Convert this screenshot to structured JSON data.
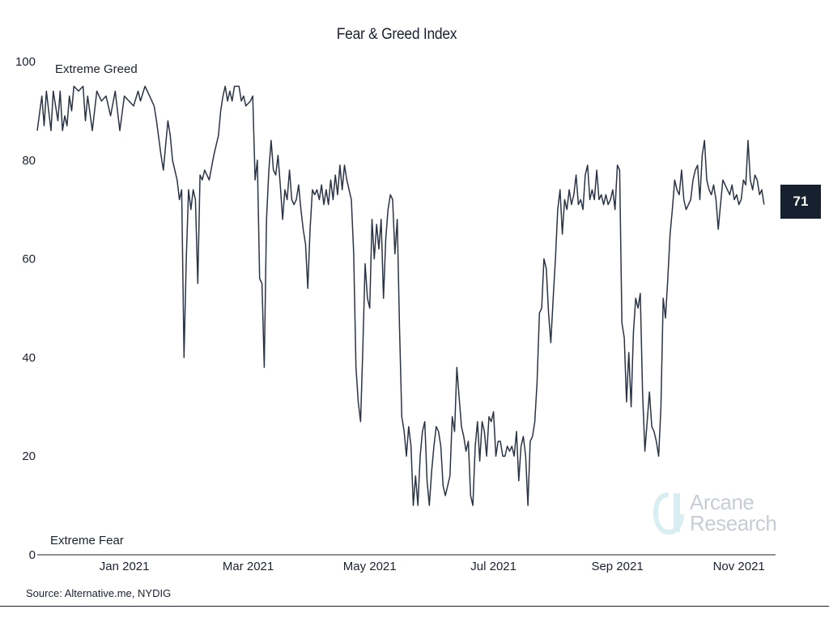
{
  "watermark": {
    "line1": "Arcane",
    "line2": "Research",
    "colors": {
      "text": "#c7cdd4",
      "accent": "#d9eef2"
    }
  },
  "footer": {
    "source": "Source: Alternative.me, NYDIG"
  },
  "badge": {
    "value": "71"
  },
  "colors": {
    "line": "#2b3445",
    "badge_bg": "#17202e",
    "text": "#1a2230"
  },
  "chart_data": {
    "type": "line",
    "title": "Fear & Greed Index",
    "xlabel": "",
    "ylabel": "",
    "ylim": [
      0,
      100
    ],
    "xlim": [
      0,
      322
    ],
    "y_ticks": [
      0,
      20,
      40,
      60,
      80,
      100
    ],
    "x_ticks": [
      {
        "label": "Jan 2021",
        "index": 38
      },
      {
        "label": "Mar 2021",
        "index": 92
      },
      {
        "label": "May 2021",
        "index": 145
      },
      {
        "label": "Jul 2021",
        "index": 199
      },
      {
        "label": "Sep 2021",
        "index": 253
      },
      {
        "label": "Nov 2021",
        "index": 306
      }
    ],
    "annotations": [
      {
        "text": "Extreme Greed",
        "anchor": "top-left"
      },
      {
        "text": "Extreme Fear",
        "anchor": "bottom-left"
      }
    ],
    "series": [
      {
        "name": "Fear & Greed Index",
        "points": [
          [
            0,
            86
          ],
          [
            2,
            93
          ],
          [
            3,
            87
          ],
          [
            4,
            94
          ],
          [
            6,
            86
          ],
          [
            7,
            94
          ],
          [
            9,
            88
          ],
          [
            10,
            94
          ],
          [
            11,
            86
          ],
          [
            12,
            89
          ],
          [
            13,
            87
          ],
          [
            14,
            93
          ],
          [
            15,
            90
          ],
          [
            16,
            95
          ],
          [
            18,
            94
          ],
          [
            20,
            95
          ],
          [
            21,
            88
          ],
          [
            22,
            93
          ],
          [
            24,
            86
          ],
          [
            26,
            94
          ],
          [
            28,
            92
          ],
          [
            30,
            93
          ],
          [
            32,
            89
          ],
          [
            34,
            94
          ],
          [
            36,
            86
          ],
          [
            38,
            93
          ],
          [
            40,
            92
          ],
          [
            42,
            91
          ],
          [
            44,
            94
          ],
          [
            45,
            92
          ],
          [
            47,
            95
          ],
          [
            49,
            93
          ],
          [
            51,
            91
          ],
          [
            52,
            88
          ],
          [
            54,
            81
          ],
          [
            55,
            78
          ],
          [
            57,
            88
          ],
          [
            58,
            85
          ],
          [
            59,
            80
          ],
          [
            61,
            76
          ],
          [
            62,
            72
          ],
          [
            63,
            74
          ],
          [
            64,
            40
          ],
          [
            65,
            60
          ],
          [
            66,
            74
          ],
          [
            67,
            70
          ],
          [
            68,
            74
          ],
          [
            69,
            72
          ],
          [
            70,
            55
          ],
          [
            71,
            77
          ],
          [
            72,
            76
          ],
          [
            73,
            78
          ],
          [
            75,
            76
          ],
          [
            77,
            81
          ],
          [
            79,
            85
          ],
          [
            80,
            90
          ],
          [
            81,
            93
          ],
          [
            82,
            95
          ],
          [
            83,
            92
          ],
          [
            84,
            94
          ],
          [
            85,
            92
          ],
          [
            86,
            95
          ],
          [
            88,
            95
          ],
          [
            89,
            92
          ],
          [
            90,
            93
          ],
          [
            91,
            91
          ],
          [
            93,
            92
          ],
          [
            94,
            93
          ],
          [
            95,
            76
          ],
          [
            96,
            80
          ],
          [
            97,
            56
          ],
          [
            98,
            55
          ],
          [
            99,
            38
          ],
          [
            100,
            68
          ],
          [
            101,
            78
          ],
          [
            102,
            84
          ],
          [
            103,
            78
          ],
          [
            104,
            77
          ],
          [
            105,
            81
          ],
          [
            106,
            75
          ],
          [
            107,
            68
          ],
          [
            108,
            74
          ],
          [
            109,
            72
          ],
          [
            110,
            78
          ],
          [
            111,
            72
          ],
          [
            112,
            71
          ],
          [
            113,
            72
          ],
          [
            114,
            75
          ],
          [
            115,
            70
          ],
          [
            116,
            66
          ],
          [
            117,
            63
          ],
          [
            118,
            54
          ],
          [
            119,
            66
          ],
          [
            120,
            74
          ],
          [
            121,
            73
          ],
          [
            122,
            74
          ],
          [
            123,
            72
          ],
          [
            124,
            75
          ],
          [
            125,
            71
          ],
          [
            126,
            74
          ],
          [
            127,
            71
          ],
          [
            128,
            76
          ],
          [
            129,
            72
          ],
          [
            130,
            77
          ],
          [
            131,
            73
          ],
          [
            132,
            79
          ],
          [
            133,
            74
          ],
          [
            134,
            79
          ],
          [
            135,
            76
          ],
          [
            136,
            74
          ],
          [
            137,
            72
          ],
          [
            138,
            61
          ],
          [
            139,
            38
          ],
          [
            140,
            31
          ],
          [
            141,
            27
          ],
          [
            142,
            42
          ],
          [
            143,
            59
          ],
          [
            144,
            52
          ],
          [
            145,
            50
          ],
          [
            146,
            68
          ],
          [
            147,
            60
          ],
          [
            148,
            67
          ],
          [
            149,
            62
          ],
          [
            150,
            68
          ],
          [
            151,
            52
          ],
          [
            152,
            64
          ],
          [
            153,
            70
          ],
          [
            154,
            73
          ],
          [
            155,
            72
          ],
          [
            156,
            61
          ],
          [
            157,
            68
          ],
          [
            158,
            46
          ],
          [
            159,
            28
          ],
          [
            160,
            25
          ],
          [
            161,
            20
          ],
          [
            162,
            26
          ],
          [
            163,
            22
          ],
          [
            164,
            10
          ],
          [
            165,
            16
          ],
          [
            166,
            10
          ],
          [
            167,
            20
          ],
          [
            168,
            25
          ],
          [
            169,
            27
          ],
          [
            170,
            15
          ],
          [
            171,
            10
          ],
          [
            172,
            17
          ],
          [
            173,
            22
          ],
          [
            174,
            26
          ],
          [
            175,
            25
          ],
          [
            176,
            22
          ],
          [
            177,
            14
          ],
          [
            178,
            12
          ],
          [
            179,
            14
          ],
          [
            180,
            16
          ],
          [
            181,
            28
          ],
          [
            182,
            25
          ],
          [
            183,
            38
          ],
          [
            184,
            32
          ],
          [
            185,
            26
          ],
          [
            186,
            24
          ],
          [
            187,
            21
          ],
          [
            188,
            23
          ],
          [
            189,
            12
          ],
          [
            190,
            10
          ],
          [
            191,
            22
          ],
          [
            192,
            27
          ],
          [
            193,
            19
          ],
          [
            194,
            27
          ],
          [
            195,
            25
          ],
          [
            196,
            20
          ],
          [
            197,
            28
          ],
          [
            198,
            27
          ],
          [
            199,
            29
          ],
          [
            200,
            20
          ],
          [
            201,
            23
          ],
          [
            202,
            23
          ],
          [
            203,
            20
          ],
          [
            204,
            20
          ],
          [
            205,
            22
          ],
          [
            206,
            21
          ],
          [
            207,
            22
          ],
          [
            208,
            20
          ],
          [
            209,
            25
          ],
          [
            210,
            15
          ],
          [
            211,
            22
          ],
          [
            212,
            24
          ],
          [
            213,
            20
          ],
          [
            214,
            10
          ],
          [
            215,
            23
          ],
          [
            216,
            24
          ],
          [
            217,
            27
          ],
          [
            218,
            35
          ],
          [
            219,
            49
          ],
          [
            220,
            50
          ],
          [
            221,
            60
          ],
          [
            222,
            58
          ],
          [
            223,
            49
          ],
          [
            224,
            43
          ],
          [
            225,
            52
          ],
          [
            226,
            60
          ],
          [
            227,
            70
          ],
          [
            228,
            74
          ],
          [
            229,
            65
          ],
          [
            230,
            72
          ],
          [
            231,
            70
          ],
          [
            232,
            74
          ],
          [
            233,
            71
          ],
          [
            234,
            73
          ],
          [
            235,
            77
          ],
          [
            236,
            71
          ],
          [
            237,
            72
          ],
          [
            238,
            70
          ],
          [
            239,
            77
          ],
          [
            240,
            79
          ],
          [
            241,
            72
          ],
          [
            242,
            74
          ],
          [
            243,
            72
          ],
          [
            244,
            78
          ],
          [
            245,
            72
          ],
          [
            246,
            73
          ],
          [
            247,
            71
          ],
          [
            248,
            73
          ],
          [
            249,
            71
          ],
          [
            250,
            72
          ],
          [
            251,
            74
          ],
          [
            252,
            70
          ],
          [
            253,
            79
          ],
          [
            254,
            78
          ],
          [
            255,
            47
          ],
          [
            256,
            44
          ],
          [
            257,
            31
          ],
          [
            258,
            41
          ],
          [
            259,
            30
          ],
          [
            260,
            45
          ],
          [
            261,
            52
          ],
          [
            262,
            50
          ],
          [
            263,
            53
          ],
          [
            264,
            33
          ],
          [
            265,
            21
          ],
          [
            266,
            27
          ],
          [
            267,
            33
          ],
          [
            268,
            26
          ],
          [
            269,
            25
          ],
          [
            270,
            23
          ],
          [
            271,
            20
          ],
          [
            272,
            30
          ],
          [
            273,
            52
          ],
          [
            274,
            48
          ],
          [
            275,
            56
          ],
          [
            276,
            65
          ],
          [
            277,
            70
          ],
          [
            278,
            76
          ],
          [
            279,
            74
          ],
          [
            280,
            73
          ],
          [
            281,
            78
          ],
          [
            282,
            72
          ],
          [
            283,
            70
          ],
          [
            284,
            71
          ],
          [
            285,
            72
          ],
          [
            286,
            76
          ],
          [
            287,
            78
          ],
          [
            288,
            79
          ],
          [
            289,
            72
          ],
          [
            290,
            81
          ],
          [
            291,
            84
          ],
          [
            292,
            76
          ],
          [
            293,
            74
          ],
          [
            294,
            73
          ],
          [
            295,
            75
          ],
          [
            296,
            72
          ],
          [
            297,
            66
          ],
          [
            298,
            71
          ],
          [
            299,
            76
          ],
          [
            300,
            75
          ],
          [
            301,
            74
          ],
          [
            302,
            73
          ],
          [
            303,
            75
          ],
          [
            304,
            72
          ],
          [
            305,
            73
          ],
          [
            306,
            71
          ],
          [
            307,
            72
          ],
          [
            308,
            76
          ],
          [
            309,
            75
          ],
          [
            310,
            84
          ],
          [
            311,
            76
          ],
          [
            312,
            74
          ],
          [
            313,
            77
          ],
          [
            314,
            76
          ],
          [
            315,
            73
          ],
          [
            316,
            74
          ],
          [
            317,
            71
          ]
        ]
      }
    ]
  }
}
